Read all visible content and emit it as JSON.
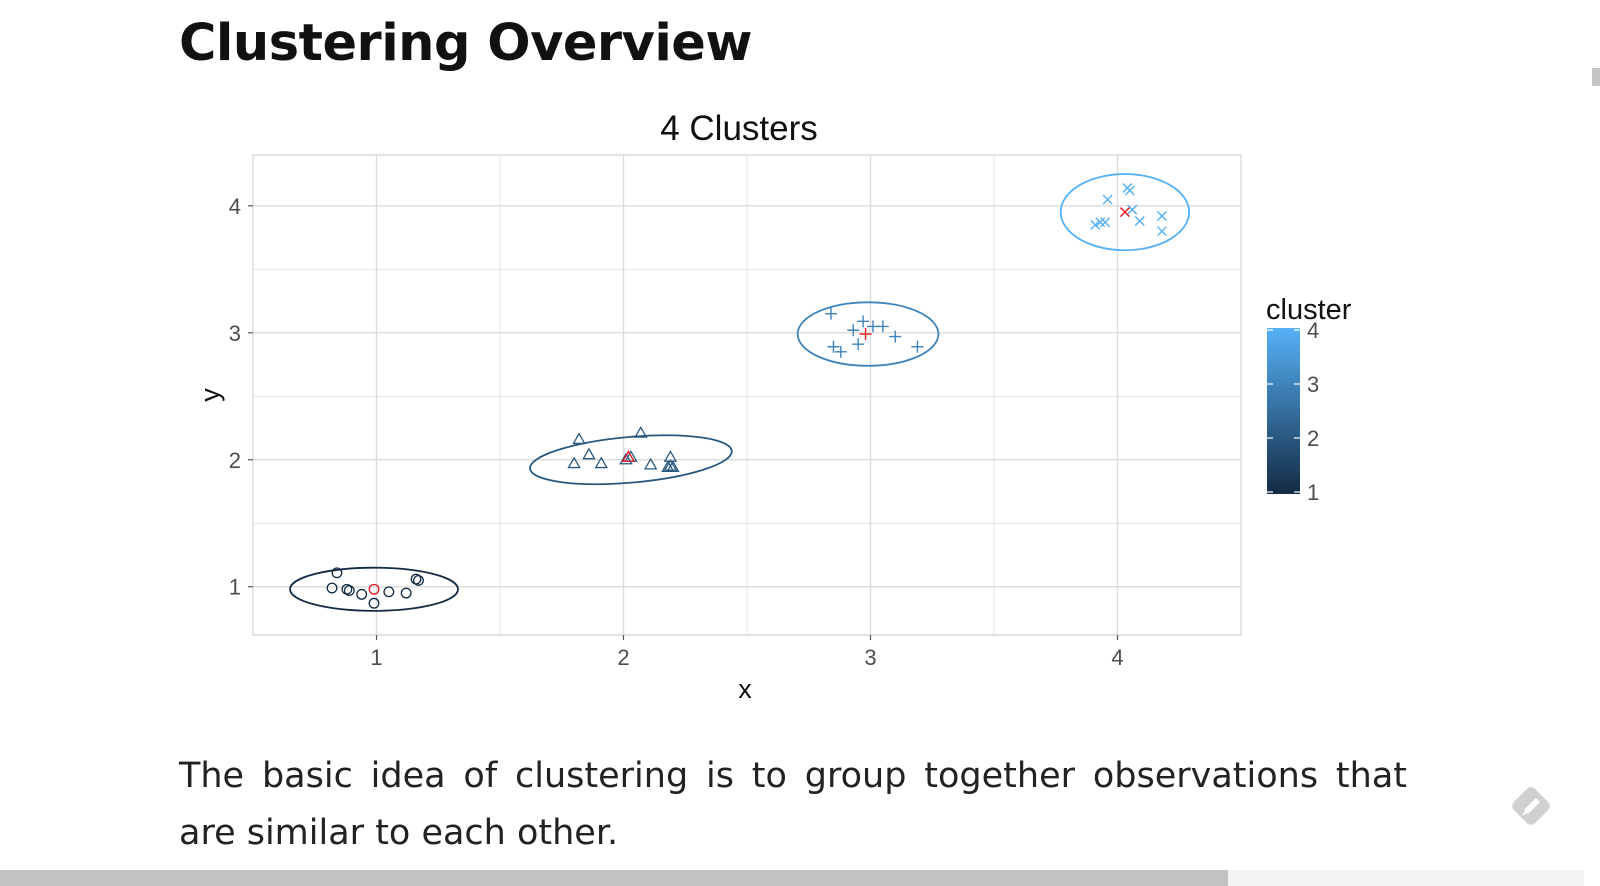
{
  "page": {
    "title": "Clustering Overview",
    "body_text": "The basic idea of clustering is to group together observations that are similar to each other."
  },
  "colors": {
    "cluster_low": "#132b43",
    "cluster_high": "#56b1f7",
    "centroid": "#e8141c",
    "grid": "#dcdcdc",
    "panel_border": "#cfcfcf"
  },
  "icons": {
    "corner": "pen-icon"
  },
  "chart_data": {
    "type": "scatter",
    "title": "4 Clusters",
    "xlabel": "x",
    "ylabel": "y",
    "xlim": [
      0.5,
      4.5
    ],
    "ylim": [
      0.62,
      4.4
    ],
    "xticks": [
      1,
      2,
      3,
      4
    ],
    "yticks": [
      1,
      2,
      3,
      4
    ],
    "grid": true,
    "legend": {
      "title": "cluster",
      "type": "colorbar",
      "position": "right",
      "range": [
        1,
        4
      ],
      "ticks": [
        1,
        2,
        3,
        4
      ]
    },
    "series": [
      {
        "name": "1",
        "shape": "circle",
        "points": [
          [
            0.84,
            1.11
          ],
          [
            0.82,
            0.99
          ],
          [
            0.88,
            0.98
          ],
          [
            0.89,
            0.97
          ],
          [
            0.94,
            0.94
          ],
          [
            0.99,
            0.87
          ],
          [
            1.05,
            0.96
          ],
          [
            1.12,
            0.95
          ],
          [
            1.16,
            1.06
          ],
          [
            1.17,
            1.05
          ]
        ],
        "centroid": [
          0.99,
          0.98
        ],
        "ellipse": {
          "center": [
            0.99,
            0.98
          ],
          "rx": 0.34,
          "ry": 0.17,
          "angle_deg": 0
        }
      },
      {
        "name": "2",
        "shape": "triangle",
        "points": [
          [
            1.8,
            1.97
          ],
          [
            1.82,
            2.16
          ],
          [
            1.86,
            2.04
          ],
          [
            1.91,
            1.97
          ],
          [
            2.01,
            2.0
          ],
          [
            2.03,
            2.02
          ],
          [
            2.07,
            2.21
          ],
          [
            2.11,
            1.96
          ],
          [
            2.18,
            1.94
          ],
          [
            2.19,
            2.02
          ],
          [
            2.19,
            1.95
          ],
          [
            2.2,
            1.94
          ]
        ],
        "centroid": [
          2.02,
          2.02
        ],
        "ellipse": {
          "center": [
            2.03,
            2.0
          ],
          "rx": 0.41,
          "ry": 0.18,
          "angle_deg": -5
        }
      },
      {
        "name": "3",
        "shape": "plus",
        "points": [
          [
            2.84,
            3.15
          ],
          [
            2.85,
            2.89
          ],
          [
            2.88,
            2.85
          ],
          [
            2.93,
            3.02
          ],
          [
            2.95,
            2.91
          ],
          [
            2.97,
            3.09
          ],
          [
            3.01,
            3.05
          ],
          [
            3.05,
            3.05
          ],
          [
            3.1,
            2.97
          ],
          [
            3.19,
            2.89
          ]
        ],
        "centroid": [
          2.98,
          2.99
        ],
        "ellipse": {
          "center": [
            2.99,
            2.99
          ],
          "rx": 0.285,
          "ry": 0.25,
          "angle_deg": 0
        }
      },
      {
        "name": "4",
        "shape": "cross",
        "points": [
          [
            3.91,
            3.85
          ],
          [
            3.93,
            3.87
          ],
          [
            3.95,
            3.87
          ],
          [
            3.96,
            4.05
          ],
          [
            4.04,
            4.14
          ],
          [
            4.05,
            4.12
          ],
          [
            4.06,
            3.97
          ],
          [
            4.09,
            3.88
          ],
          [
            4.18,
            3.92
          ],
          [
            4.18,
            3.8
          ]
        ],
        "centroid": [
          4.03,
          3.95
        ],
        "ellipse": {
          "center": [
            4.03,
            3.95
          ],
          "rx": 0.26,
          "ry": 0.3,
          "angle_deg": 0
        }
      }
    ]
  }
}
